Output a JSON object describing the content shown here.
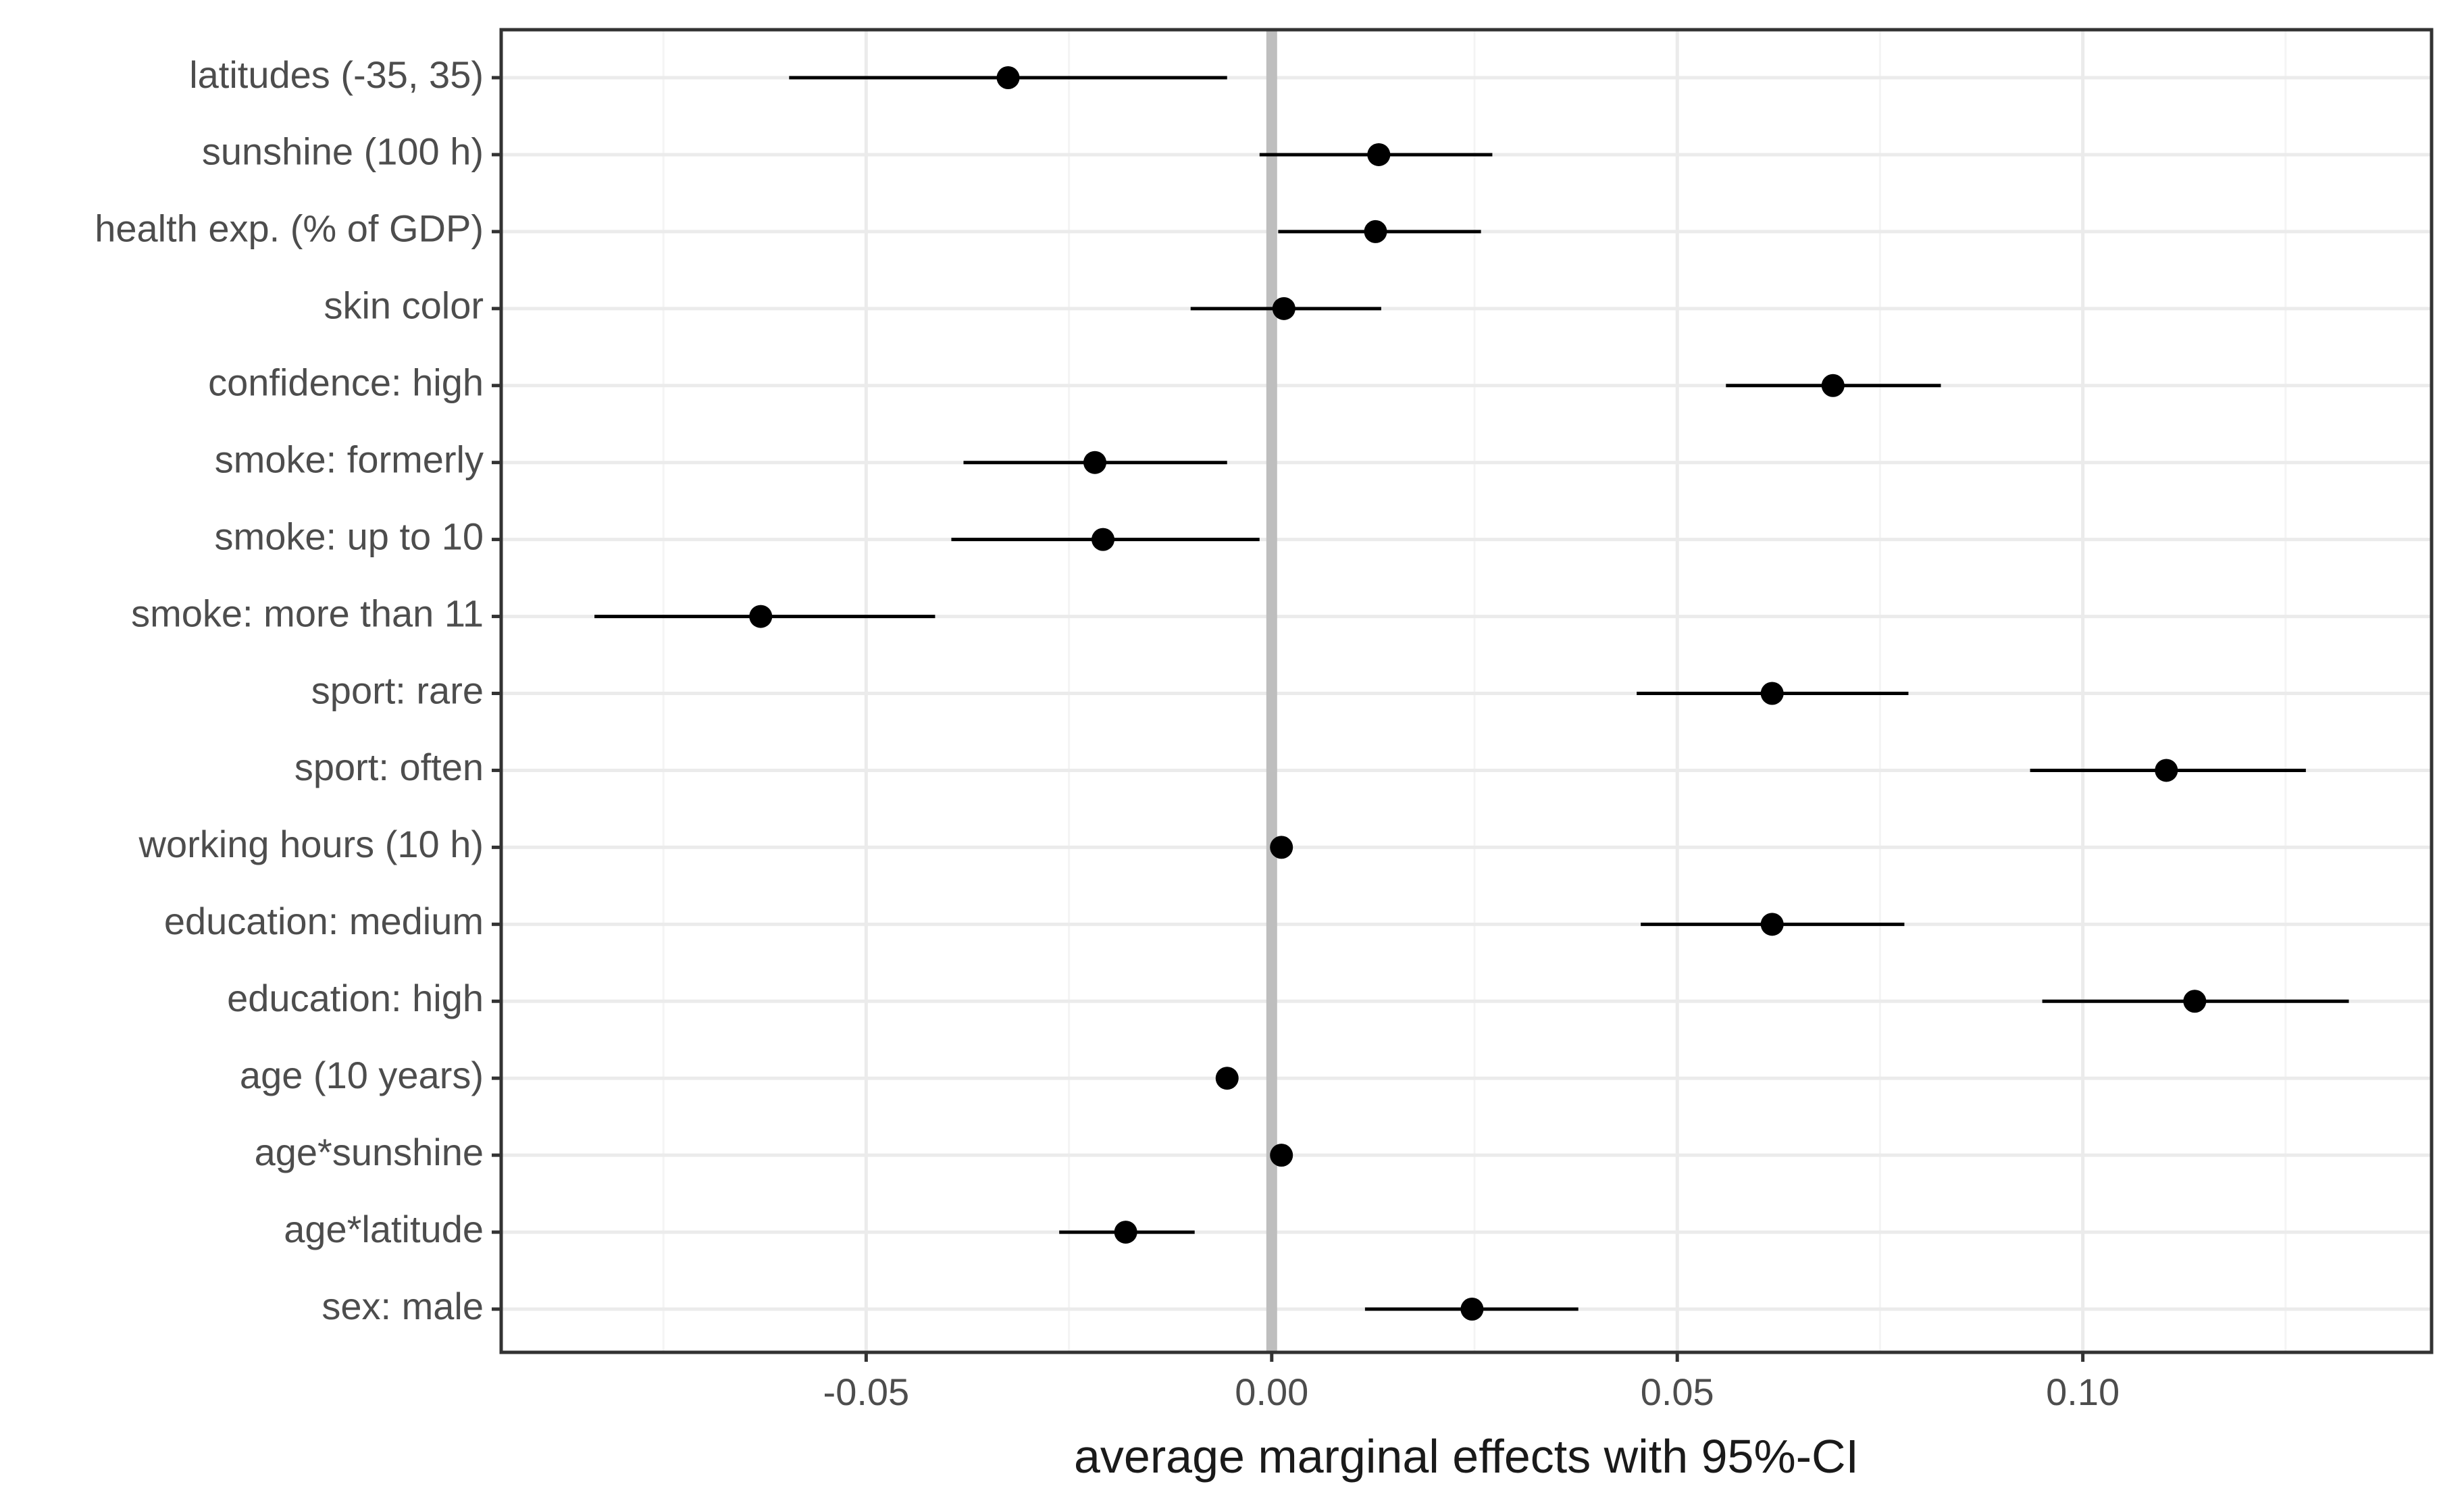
{
  "chart_data": {
    "type": "forest",
    "title": "",
    "xlabel": "average marginal effects with 95%-CI",
    "ylabel": "",
    "xlim": [
      -0.095,
      0.143
    ],
    "x_ticks": [
      -0.05,
      0.0,
      0.05,
      0.1
    ],
    "x_tick_labels": [
      "-0.05",
      "0.00",
      "0.05",
      "0.10"
    ],
    "reference_line": 0,
    "grid": true,
    "series": [
      {
        "label": "latitudes (-35, 35)",
        "estimate": -0.0325,
        "lower": -0.0595,
        "upper": -0.0055
      },
      {
        "label": "sunshine (100 h)",
        "estimate": 0.0132,
        "lower": -0.0015,
        "upper": 0.0272
      },
      {
        "label": "health exp. (% of GDP)",
        "estimate": 0.0128,
        "lower": 0.0008,
        "upper": 0.0258
      },
      {
        "label": "skin color",
        "estimate": 0.0015,
        "lower": -0.01,
        "upper": 0.0135
      },
      {
        "label": "confidence: high",
        "estimate": 0.0692,
        "lower": 0.056,
        "upper": 0.0825
      },
      {
        "label": "smoke: formerly",
        "estimate": -0.0218,
        "lower": -0.038,
        "upper": -0.0055
      },
      {
        "label": "smoke: up to 10",
        "estimate": -0.0208,
        "lower": -0.0395,
        "upper": -0.0015
      },
      {
        "label": "smoke: more than 11",
        "estimate": -0.063,
        "lower": -0.0835,
        "upper": -0.0415
      },
      {
        "label": "sport: rare",
        "estimate": 0.0617,
        "lower": 0.045,
        "upper": 0.0785
      },
      {
        "label": "sport: often",
        "estimate": 0.1103,
        "lower": 0.0935,
        "upper": 0.1275
      },
      {
        "label": "working hours (10 h)",
        "estimate": 0.0012,
        "lower": 0.0006,
        "upper": 0.0018
      },
      {
        "label": "education: medium",
        "estimate": 0.0617,
        "lower": 0.0455,
        "upper": 0.078
      },
      {
        "label": "education: high",
        "estimate": 0.1138,
        "lower": 0.095,
        "upper": 0.1328
      },
      {
        "label": "age (10 years)",
        "estimate": -0.0055,
        "lower": -0.0061,
        "upper": -0.0049
      },
      {
        "label": "age*sunshine",
        "estimate": 0.0012,
        "lower": 0.0006,
        "upper": 0.0018
      },
      {
        "label": "age*latitude",
        "estimate": -0.018,
        "lower": -0.0262,
        "upper": -0.0095
      },
      {
        "label": "sex: male",
        "estimate": 0.0247,
        "lower": 0.0115,
        "upper": 0.0378
      }
    ],
    "colors": {
      "panel_background": "#ffffff",
      "grid_major": "#ebebeb",
      "grid_minor": "#f4f4f4",
      "panel_border": "#333333",
      "reference_line": "#bebebe",
      "point": "#000000",
      "interval": "#000000",
      "tick_label": "#4d4d4d",
      "axis_title": "#1a1a1a"
    }
  }
}
